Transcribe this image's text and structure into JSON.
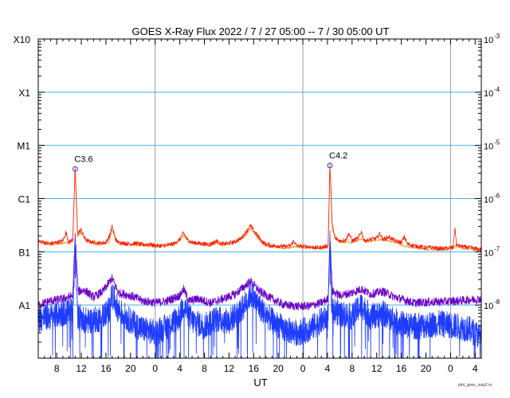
{
  "chart_data": {
    "type": "line",
    "title": "GOES X-Ray Flux   2022  /  7  /  27   05:00 --  7  /  30   05:00   UT",
    "xlabel": "UT",
    "x_range_hours": [
      5,
      77
    ],
    "x_ticks": [
      {
        "hour": 8,
        "label": "8"
      },
      {
        "hour": 12,
        "label": "12"
      },
      {
        "hour": 16,
        "label": "16"
      },
      {
        "hour": 20,
        "label": "20"
      },
      {
        "hour": 24,
        "label": "0"
      },
      {
        "hour": 28,
        "label": "4"
      },
      {
        "hour": 32,
        "label": "8"
      },
      {
        "hour": 36,
        "label": "12"
      },
      {
        "hour": 40,
        "label": "16"
      },
      {
        "hour": 44,
        "label": "20"
      },
      {
        "hour": 48,
        "label": "0"
      },
      {
        "hour": 52,
        "label": "4"
      },
      {
        "hour": 56,
        "label": "8"
      },
      {
        "hour": 60,
        "label": "12"
      },
      {
        "hour": 64,
        "label": "16"
      },
      {
        "hour": 68,
        "label": "20"
      },
      {
        "hour": 72,
        "label": "0"
      },
      {
        "hour": 76,
        "label": "4"
      }
    ],
    "day_boundaries_hours": [
      24,
      48,
      72
    ],
    "y_scale": "log",
    "y_range": [
      1e-09,
      0.001
    ],
    "y_left_labels": [
      {
        "value": 0.001,
        "label": "X10"
      },
      {
        "value": 0.0001,
        "label": "X1"
      },
      {
        "value": 1e-05,
        "label": "M1"
      },
      {
        "value": 1e-06,
        "label": "C1"
      },
      {
        "value": 1e-07,
        "label": "B1"
      },
      {
        "value": 1e-08,
        "label": "A1"
      }
    ],
    "y_right_labels": [
      {
        "value": 0.001,
        "label": "10",
        "exp": "-3"
      },
      {
        "value": 0.0001,
        "label": "10",
        "exp": "-4"
      },
      {
        "value": 1e-05,
        "label": "10",
        "exp": "-5"
      },
      {
        "value": 1e-06,
        "label": "10",
        "exp": "-6"
      },
      {
        "value": 1e-07,
        "label": "10",
        "exp": "-7"
      },
      {
        "value": 1e-08,
        "label": "10",
        "exp": "-8"
      }
    ],
    "flares": [
      {
        "label": "C3.6",
        "hour": 11.0,
        "flux": 3.6e-06
      },
      {
        "label": "C4.2",
        "hour": 52.4,
        "flux": 4.2e-06
      }
    ],
    "series": [
      {
        "key": "long_orange",
        "color": "#f08c1e",
        "points": [
          [
            5,
            1.5e-07
          ],
          [
            7,
            1.35e-07
          ],
          [
            9,
            1.45e-07
          ],
          [
            10.6,
            1.6e-07
          ],
          [
            11,
            3.6e-06
          ],
          [
            11.4,
            2e-07
          ],
          [
            12,
            2.2e-07
          ],
          [
            13,
            1.6e-07
          ],
          [
            15,
            1.4e-07
          ],
          [
            16.5,
            1.5e-07
          ],
          [
            17,
            2.7e-07
          ],
          [
            17.6,
            1.6e-07
          ],
          [
            19,
            1.4e-07
          ],
          [
            22,
            1.3e-07
          ],
          [
            24,
            1.25e-07
          ],
          [
            26,
            1.3e-07
          ],
          [
            28,
            1.6e-07
          ],
          [
            28.6,
            2.1e-07
          ],
          [
            29.5,
            1.5e-07
          ],
          [
            31,
            1.4e-07
          ],
          [
            33,
            1.3e-07
          ],
          [
            34,
            1.5e-07
          ],
          [
            35,
            1.35e-07
          ],
          [
            37,
            1.5e-07
          ],
          [
            38.5,
            1.9e-07
          ],
          [
            39.5,
            2.8e-07
          ],
          [
            40.5,
            1.9e-07
          ],
          [
            42,
            1.3e-07
          ],
          [
            45,
            1.15e-07
          ],
          [
            47,
            1.25e-07
          ],
          [
            49,
            1.2e-07
          ],
          [
            51,
            1.15e-07
          ],
          [
            52.1,
            1.25e-07
          ],
          [
            52.4,
            4.2e-06
          ],
          [
            52.8,
            2.5e-07
          ],
          [
            54,
            1.5e-07
          ],
          [
            56,
            1.5e-07
          ],
          [
            57.5,
            1.7e-07
          ],
          [
            59,
            1.6e-07
          ],
          [
            61,
            1.7e-07
          ],
          [
            63,
            1.5e-07
          ],
          [
            65,
            1.25e-07
          ],
          [
            68,
            1.1e-07
          ],
          [
            71,
            1.1e-07
          ],
          [
            72.4,
            1.15e-07
          ],
          [
            73,
            1.4e-07
          ],
          [
            74,
            1.15e-07
          ],
          [
            77,
            1.05e-07
          ]
        ]
      },
      {
        "key": "long_red",
        "color": "#ff1e00",
        "points": [
          [
            5,
            1.6e-07
          ],
          [
            6,
            1.5e-07
          ],
          [
            7,
            1.42e-07
          ],
          [
            8,
            1.5e-07
          ],
          [
            9,
            1.6e-07
          ],
          [
            9.5,
            2.3e-07
          ],
          [
            10,
            1.5e-07
          ],
          [
            10.6,
            1.7e-07
          ],
          [
            11,
            3.6e-06
          ],
          [
            11.4,
            2.2e-07
          ],
          [
            12,
            2.6e-07
          ],
          [
            12.5,
            1.8e-07
          ],
          [
            13,
            1.6e-07
          ],
          [
            14,
            1.5e-07
          ],
          [
            15,
            1.45e-07
          ],
          [
            16,
            1.5e-07
          ],
          [
            16.6,
            2e-07
          ],
          [
            17,
            3e-07
          ],
          [
            17.6,
            1.7e-07
          ],
          [
            18,
            1.5e-07
          ],
          [
            19,
            1.45e-07
          ],
          [
            20,
            1.4e-07
          ],
          [
            21,
            1.45e-07
          ],
          [
            22,
            1.35e-07
          ],
          [
            23,
            1.4e-07
          ],
          [
            24,
            1.3e-07
          ],
          [
            25,
            1.3e-07
          ],
          [
            26,
            1.35e-07
          ],
          [
            27,
            1.4e-07
          ],
          [
            28,
            1.7e-07
          ],
          [
            28.6,
            2.3e-07
          ],
          [
            29.2,
            1.7e-07
          ],
          [
            30,
            1.5e-07
          ],
          [
            31,
            1.45e-07
          ],
          [
            32,
            1.4e-07
          ],
          [
            33,
            1.4e-07
          ],
          [
            34,
            1.6e-07
          ],
          [
            34.5,
            1.45e-07
          ],
          [
            35,
            1.4e-07
          ],
          [
            36,
            1.45e-07
          ],
          [
            37,
            1.55e-07
          ],
          [
            38,
            1.8e-07
          ],
          [
            38.8,
            2.4e-07
          ],
          [
            39.5,
            3.1e-07
          ],
          [
            40,
            2.5e-07
          ],
          [
            40.8,
            1.9e-07
          ],
          [
            41.5,
            1.5e-07
          ],
          [
            42,
            1.4e-07
          ],
          [
            43,
            1.3e-07
          ],
          [
            44,
            1.3e-07
          ],
          [
            45,
            1.25e-07
          ],
          [
            46,
            1.3e-07
          ],
          [
            46.5,
            1.6e-07
          ],
          [
            47,
            1.3e-07
          ],
          [
            48,
            1.25e-07
          ],
          [
            49,
            1.25e-07
          ],
          [
            50,
            1.2e-07
          ],
          [
            51,
            1.2e-07
          ],
          [
            52.1,
            1.3e-07
          ],
          [
            52.4,
            4.2e-06
          ],
          [
            52.8,
            3e-07
          ],
          [
            53.2,
            1.8e-07
          ],
          [
            54,
            1.6e-07
          ],
          [
            55,
            1.7e-07
          ],
          [
            55.5,
            2.2e-07
          ],
          [
            56,
            1.6e-07
          ],
          [
            57,
            1.8e-07
          ],
          [
            57.5,
            2.4e-07
          ],
          [
            58,
            1.6e-07
          ],
          [
            59,
            1.7e-07
          ],
          [
            60,
            1.8e-07
          ],
          [
            60.5,
            2.2e-07
          ],
          [
            61,
            1.7e-07
          ],
          [
            62,
            1.9e-07
          ],
          [
            63,
            1.6e-07
          ],
          [
            64,
            1.5e-07
          ],
          [
            64.5,
            1.9e-07
          ],
          [
            65,
            1.4e-07
          ],
          [
            66,
            1.3e-07
          ],
          [
            67,
            1.25e-07
          ],
          [
            68,
            1.2e-07
          ],
          [
            69,
            1.2e-07
          ],
          [
            70,
            1.15e-07
          ],
          [
            71,
            1.15e-07
          ],
          [
            72,
            1.2e-07
          ],
          [
            72.4,
            1.2e-07
          ],
          [
            72.7,
            2.8e-07
          ],
          [
            73,
            1.3e-07
          ],
          [
            74,
            1.25e-07
          ],
          [
            75,
            1.2e-07
          ],
          [
            76,
            1.15e-07
          ],
          [
            77,
            1.1e-07
          ]
        ]
      },
      {
        "key": "short_purple",
        "color": "#6a00c8",
        "points": [
          [
            5,
            1e-08
          ],
          [
            7,
            1.2e-08
          ],
          [
            9,
            1.3e-08
          ],
          [
            10.6,
            1.5e-08
          ],
          [
            11,
            2e-07
          ],
          [
            11.5,
            1.8e-08
          ],
          [
            12.5,
            1.9e-08
          ],
          [
            14,
            1.4e-08
          ],
          [
            15.5,
            1.8e-08
          ],
          [
            17,
            3.2e-08
          ],
          [
            18,
            1.7e-08
          ],
          [
            20,
            1.5e-08
          ],
          [
            22,
            1.2e-08
          ],
          [
            24,
            1.1e-08
          ],
          [
            26,
            1.2e-08
          ],
          [
            28,
            1.5e-08
          ],
          [
            28.6,
            2e-08
          ],
          [
            29.5,
            1.2e-08
          ],
          [
            31,
            1.3e-08
          ],
          [
            33,
            1.1e-08
          ],
          [
            35,
            1.3e-08
          ],
          [
            37,
            1.6e-08
          ],
          [
            39.5,
            2.8e-08
          ],
          [
            41,
            1.8e-08
          ],
          [
            43,
            1.3e-08
          ],
          [
            45,
            1e-08
          ],
          [
            47,
            9.5e-09
          ],
          [
            49,
            9.5e-09
          ],
          [
            51,
            1.1e-08
          ],
          [
            52.1,
            1.3e-08
          ],
          [
            52.4,
            2e-07
          ],
          [
            52.8,
            1.8e-08
          ],
          [
            54,
            1.5e-08
          ],
          [
            56,
            1.7e-08
          ],
          [
            57.5,
            2e-08
          ],
          [
            59,
            1.6e-08
          ],
          [
            61,
            1.8e-08
          ],
          [
            63,
            1.4e-08
          ],
          [
            65,
            1.2e-08
          ],
          [
            66,
            1.1e-08
          ],
          [
            70,
            1.15e-08
          ],
          [
            73,
            1.2e-08
          ],
          [
            75,
            1.25e-08
          ],
          [
            77,
            1.3e-08
          ]
        ]
      },
      {
        "key": "short_blue",
        "color": "#1e3cff",
        "points": [
          [
            5,
            5.5e-09
          ],
          [
            7,
            6e-09
          ],
          [
            9,
            7e-09
          ],
          [
            10.6,
            8e-09
          ],
          [
            11,
            1.2e-07
          ],
          [
            11.4,
            6e-09
          ],
          [
            13,
            5e-09
          ],
          [
            15,
            5.5e-09
          ],
          [
            16.5,
            8e-09
          ],
          [
            17,
            1.6e-08
          ],
          [
            18,
            8e-09
          ],
          [
            20,
            5e-09
          ],
          [
            22,
            3.5e-09
          ],
          [
            24,
            3e-09
          ],
          [
            26,
            4e-09
          ],
          [
            28,
            6e-09
          ],
          [
            28.6,
            1e-08
          ],
          [
            30,
            5e-09
          ],
          [
            32,
            4e-09
          ],
          [
            34,
            5.5e-09
          ],
          [
            36,
            5e-09
          ],
          [
            38,
            8e-09
          ],
          [
            39.5,
            1.6e-08
          ],
          [
            41,
            9e-09
          ],
          [
            43,
            5e-09
          ],
          [
            45,
            3.5e-09
          ],
          [
            47,
            3e-09
          ],
          [
            49,
            3.5e-09
          ],
          [
            51,
            5e-09
          ],
          [
            52.1,
            6e-09
          ],
          [
            52.4,
            1.5e-07
          ],
          [
            52.8,
            8e-09
          ],
          [
            54,
            7e-09
          ],
          [
            56,
            6e-09
          ],
          [
            57.5,
            1e-08
          ],
          [
            59,
            6e-09
          ],
          [
            61,
            7e-09
          ],
          [
            63,
            5e-09
          ],
          [
            65,
            4e-09
          ],
          [
            67,
            4e-09
          ],
          [
            70,
            4.5e-09
          ],
          [
            73,
            4e-09
          ],
          [
            75,
            3.5e-09
          ],
          [
            77,
            2.5e-09
          ]
        ]
      }
    ]
  },
  "footer": {
    "credit": "plot_goes_xray2.rn"
  }
}
